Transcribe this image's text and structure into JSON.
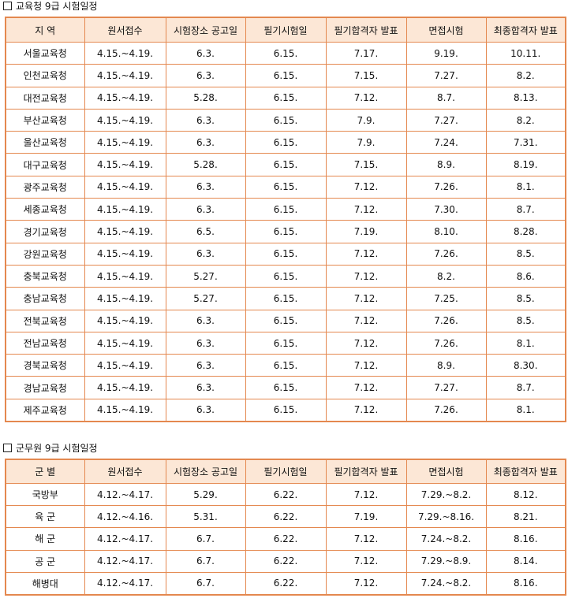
{
  "edu": {
    "title": "교육청 9급 시험일정",
    "headers": [
      "지 역",
      "원서접수",
      "시험장소 공고일",
      "필기시험일",
      "필기합격자 발표",
      "면접시험",
      "최종합격자 발표"
    ],
    "rows": [
      [
        "서울교육청",
        "4.15.~4.19.",
        "6.3.",
        "6.15.",
        "7.17.",
        "9.19.",
        "10.11."
      ],
      [
        "인천교육청",
        "4.15.~4.19.",
        "6.3.",
        "6.15.",
        "7.15.",
        "7.27.",
        "8.2."
      ],
      [
        "대전교육청",
        "4.15.~4.19.",
        "5.28.",
        "6.15.",
        "7.12.",
        "8.7.",
        "8.13."
      ],
      [
        "부산교육청",
        "4.15.~4.19.",
        "6.3.",
        "6.15.",
        "7.9.",
        "7.27.",
        "8.2."
      ],
      [
        "울산교육청",
        "4.15.~4.19.",
        "6.3.",
        "6.15.",
        "7.9.",
        "7.24.",
        "7.31."
      ],
      [
        "대구교육청",
        "4.15.~4.19.",
        "5.28.",
        "6.15.",
        "7.15.",
        "8.9.",
        "8.19."
      ],
      [
        "광주교육청",
        "4.15.~4.19.",
        "6.3.",
        "6.15.",
        "7.12.",
        "7.26.",
        "8.1."
      ],
      [
        "세종교육청",
        "4.15.~4.19.",
        "6.3.",
        "6.15.",
        "7.12.",
        "7.30.",
        "8.7."
      ],
      [
        "경기교육청",
        "4.15.~4.19.",
        "6.5.",
        "6.15.",
        "7.19.",
        "8.10.",
        "8.28."
      ],
      [
        "강원교육청",
        "4.15.~4.19.",
        "6.3.",
        "6.15.",
        "7.12.",
        "7.26.",
        "8.5."
      ],
      [
        "충북교육청",
        "4.15.~4.19.",
        "5.27.",
        "6.15.",
        "7.12.",
        "8.2.",
        "8.6."
      ],
      [
        "충남교육청",
        "4.15.~4.19.",
        "5.27.",
        "6.15.",
        "7.12.",
        "7.25.",
        "8.5."
      ],
      [
        "전북교육청",
        "4.15.~4.19.",
        "6.3.",
        "6.15.",
        "7.12.",
        "7.26.",
        "8.5."
      ],
      [
        "전남교육청",
        "4.15.~4.19.",
        "6.3.",
        "6.15.",
        "7.12.",
        "7.26.",
        "8.1."
      ],
      [
        "경북교육청",
        "4.15.~4.19.",
        "6.3.",
        "6.15.",
        "7.12.",
        "8.9.",
        "8.30."
      ],
      [
        "경남교육청",
        "4.15.~4.19.",
        "6.3.",
        "6.15.",
        "7.12.",
        "7.27.",
        "8.7."
      ],
      [
        "제주교육청",
        "4.15.~4.19.",
        "6.3.",
        "6.15.",
        "7.12.",
        "7.26.",
        "8.1."
      ]
    ]
  },
  "mil": {
    "title": "군무원 9급 시험일정",
    "headers": [
      "군 별",
      "원서접수",
      "시험장소 공고일",
      "필기시험일",
      "필기합격자 발표",
      "면접시험",
      "최종합격자 발표"
    ],
    "rows": [
      [
        "국방부",
        "4.12.~4.17.",
        "5.29.",
        "6.22.",
        "7.12.",
        "7.29.~8.2.",
        "8.12."
      ],
      [
        "육 군",
        "4.12.~4.16.",
        "5.31.",
        "6.22.",
        "7.19.",
        "7.29.~8.16.",
        "8.21."
      ],
      [
        "해 군",
        "4.12.~4.17.",
        "6.7.",
        "6.22.",
        "7.12.",
        "7.24.~8.2.",
        "8.16."
      ],
      [
        "공 군",
        "4.12.~4.17.",
        "6.7.",
        "6.22.",
        "7.12.",
        "7.29.~8.9.",
        "8.14."
      ],
      [
        "해병대",
        "4.12.~4.17.",
        "6.7.",
        "6.22.",
        "7.12.",
        "7.24.~8.2.",
        "8.16."
      ]
    ]
  },
  "colors": {
    "border": "#e4884f",
    "header_bg": "#fce7d6"
  }
}
